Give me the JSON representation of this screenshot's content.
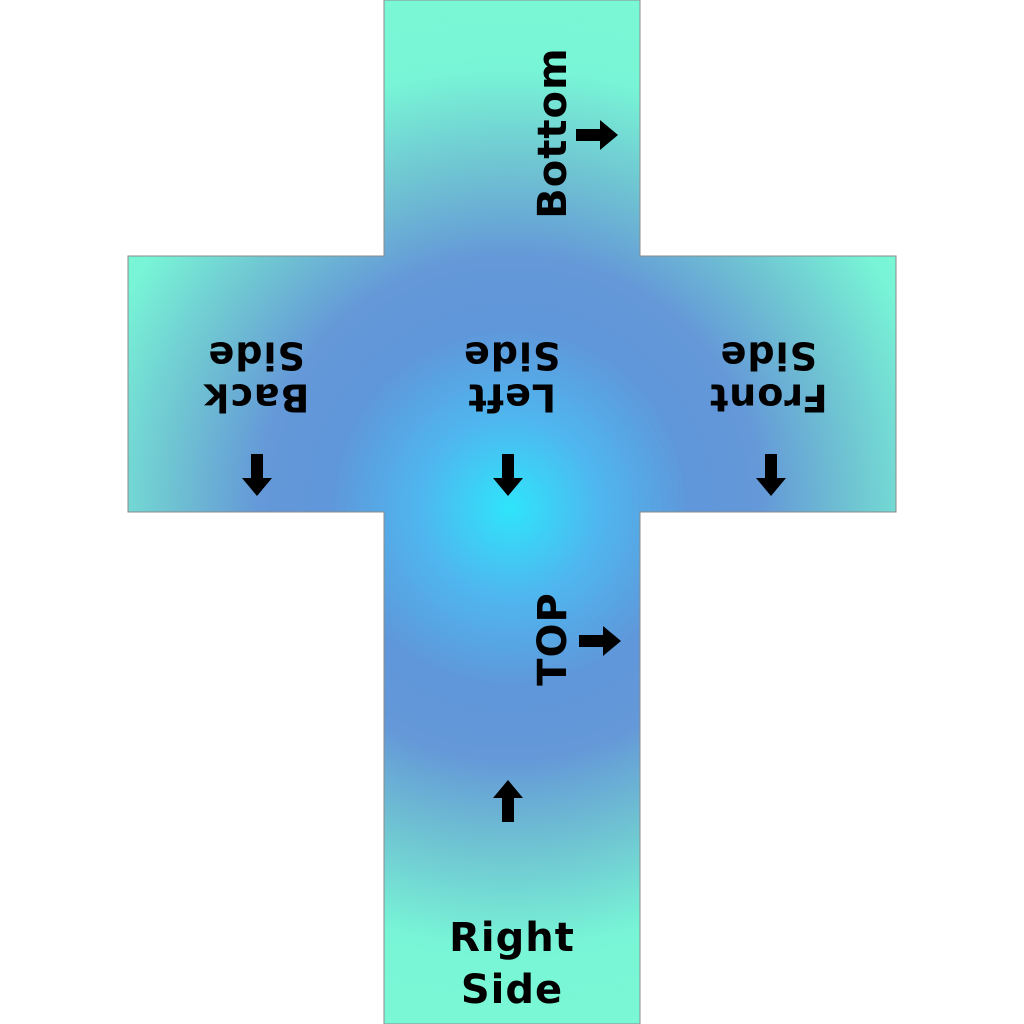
{
  "faces": {
    "bottom": {
      "label": "Bottom",
      "arrow": "right"
    },
    "back": {
      "label": "Back\nSide",
      "arrow": "down"
    },
    "left": {
      "label": "Left\nSide",
      "arrow": "down"
    },
    "front": {
      "label": "Front\nSide",
      "arrow": "down"
    },
    "top": {
      "label": "TOP",
      "arrow": "right"
    },
    "right": {
      "label": "Right\nSide",
      "arrow": "up"
    }
  },
  "colors": {
    "center": "#2fe4fb",
    "mid": "#6498d8",
    "edge": "#7af8d5",
    "text": "#000000"
  }
}
